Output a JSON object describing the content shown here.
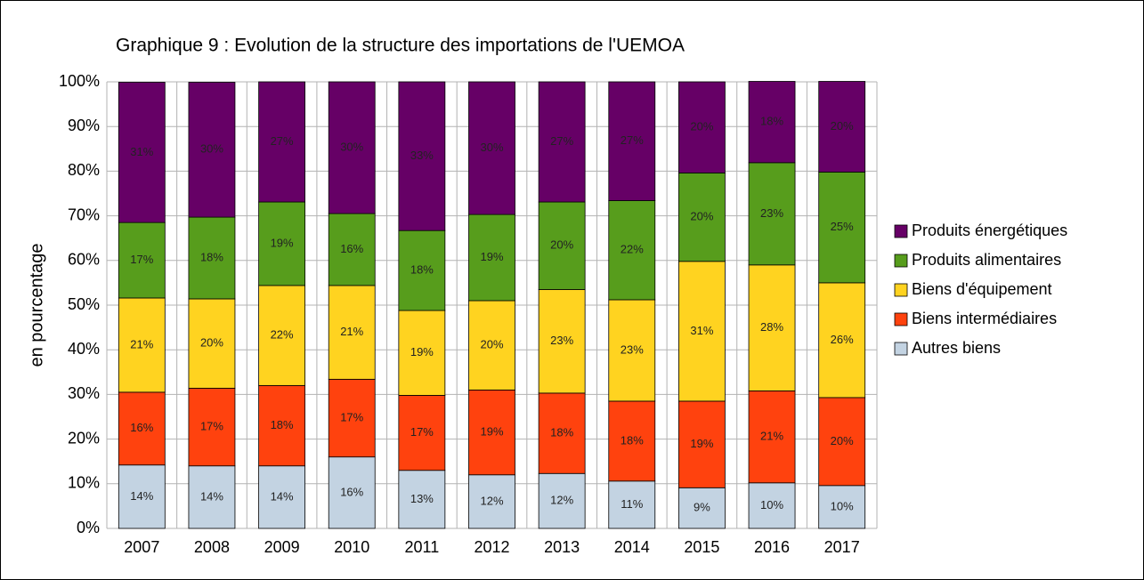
{
  "chart_data": {
    "type": "stacked_bar",
    "title": "Graphique 9 : Evolution de la structure des importations de l'UEMOA",
    "ylabel": "en pourcentage",
    "categories": [
      "2007",
      "2008",
      "2009",
      "2010",
      "2011",
      "2012",
      "2013",
      "2014",
      "2015",
      "2016",
      "2017"
    ],
    "ylim": [
      0,
      100
    ],
    "yticks": [
      {
        "value": 0,
        "label": "0%"
      },
      {
        "value": 10,
        "label": "10%"
      },
      {
        "value": 20,
        "label": "20%"
      },
      {
        "value": 30,
        "label": "30%"
      },
      {
        "value": 40,
        "label": "40%"
      },
      {
        "value": 50,
        "label": "50%"
      },
      {
        "value": 60,
        "label": "60%"
      },
      {
        "value": 70,
        "label": "70%"
      },
      {
        "value": 80,
        "label": "80%"
      },
      {
        "value": 90,
        "label": "90%"
      },
      {
        "value": 100,
        "label": "100%"
      }
    ],
    "grid": true,
    "legend": "right",
    "series": [
      {
        "name": "Autres biens",
        "color": "#c3d3e2",
        "values": [
          14.2,
          14,
          14,
          16,
          13,
          12,
          12.3,
          10.6,
          9.1,
          10.2,
          9.6
        ],
        "value_labels": [
          "14%",
          "14%",
          "14%",
          "16%",
          "13%",
          "12%",
          "12%",
          "11%",
          "9%",
          "10%",
          "10%"
        ]
      },
      {
        "name": "Biens intermédiaires",
        "color": "#ff420e",
        "values": [
          16.3,
          17.4,
          18,
          17.4,
          16.8,
          19,
          18,
          17.9,
          19.4,
          20.6,
          19.7
        ],
        "value_labels": [
          "16%",
          "17%",
          "18%",
          "17%",
          "17%",
          "19%",
          "18%",
          "18%",
          "19%",
          "21%",
          "20%"
        ]
      },
      {
        "name": "Biens d'équipement",
        "color": "#ffd320",
        "values": [
          21.1,
          20,
          22.4,
          21,
          19,
          20,
          23.2,
          22.7,
          31.3,
          28.2,
          25.7
        ],
        "value_labels": [
          "21%",
          "20%",
          "22%",
          "21%",
          "19%",
          "20%",
          "23%",
          "23%",
          "31%",
          "28%",
          "26%"
        ]
      },
      {
        "name": "Produits alimentaires",
        "color": "#579d1c",
        "values": [
          16.9,
          18.3,
          18.7,
          16.1,
          17.9,
          19.3,
          19.6,
          22.2,
          19.8,
          22.9,
          24.8
        ],
        "value_labels": [
          "17%",
          "18%",
          "19%",
          "16%",
          "18%",
          "19%",
          "20%",
          "22%",
          "20%",
          "23%",
          "25%"
        ]
      },
      {
        "name": "Produits énergétiques",
        "color": "#660066",
        "values": [
          31.4,
          30.2,
          26.9,
          29.5,
          33.3,
          29.7,
          26.9,
          26.6,
          20.4,
          18.2,
          20.3
        ],
        "value_labels": [
          "31%",
          "30%",
          "27%",
          "30%",
          "33%",
          "30%",
          "27%",
          "27%",
          "20%",
          "18%",
          "20%"
        ]
      }
    ]
  }
}
